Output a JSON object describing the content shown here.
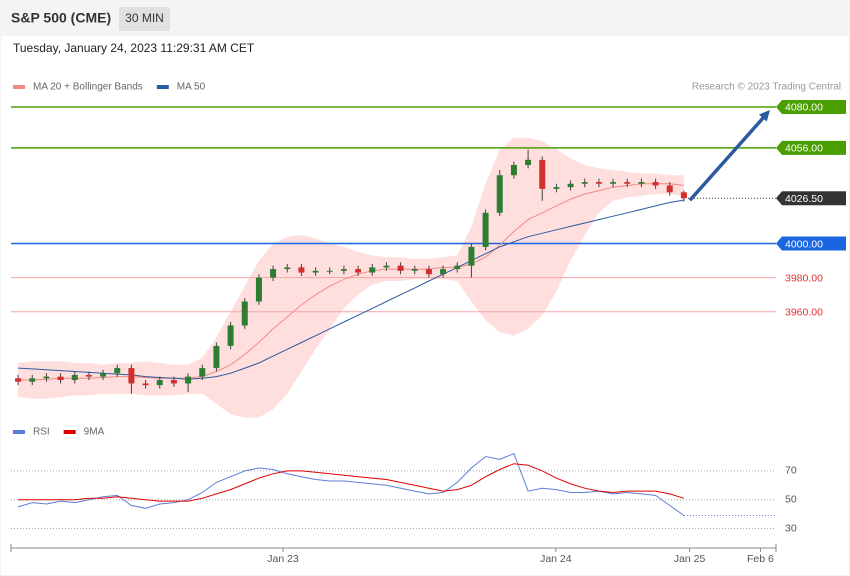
{
  "chart_data": [
    {
      "type": "candlestick",
      "title": "S&P 500 (CME)",
      "timeframe": "30 MIN",
      "subtitle": "Tuesday, January 24, 2023 11:29:31 AM CET",
      "attribution": "Research © 2023 Trading Central",
      "up_color": "#2e7d32",
      "down_color": "#d32f2f",
      "ylim": [
        3896,
        4087
      ],
      "open": [
        3921,
        3919,
        3921,
        3922,
        3920,
        3923,
        3922,
        3924,
        3927,
        3918,
        3917,
        3920,
        3918,
        3922,
        3927,
        3940,
        3952,
        3966,
        3980,
        3985,
        3986,
        3983,
        3984,
        3984,
        3985,
        3983,
        3986,
        3987,
        3984,
        3985,
        3982,
        3985,
        3987,
        3998,
        4018,
        4040,
        4046,
        4049,
        4032,
        4033,
        4035,
        4036,
        4035,
        4036,
        4035,
        4036,
        4034,
        4030
      ],
      "high": [
        3923,
        3923,
        3924,
        3924,
        3925,
        3925,
        3926,
        3929,
        3929,
        3920,
        3922,
        3922,
        3924,
        3929,
        3942,
        3954,
        3968,
        3982,
        3987,
        3988,
        3988,
        3986,
        3986,
        3987,
        3987,
        3988,
        3989,
        3989,
        3987,
        3987,
        3987,
        3989,
        4000,
        4020,
        4043,
        4048,
        4055,
        4051,
        4035,
        4037,
        4038,
        4038,
        4038,
        4038,
        4038,
        4038,
        4036,
        4031
      ],
      "low": [
        3917,
        3917,
        3919,
        3918,
        3918,
        3920,
        3920,
        3922,
        3912,
        3915,
        3915,
        3916,
        3913,
        3920,
        3925,
        3938,
        3950,
        3964,
        3978,
        3983,
        3981,
        3981,
        3982,
        3982,
        3981,
        3981,
        3984,
        3982,
        3982,
        3980,
        3980,
        3983,
        3980,
        3996,
        4016,
        4038,
        4044,
        4025,
        4030,
        4031,
        4033,
        4033,
        4033,
        4033,
        4033,
        4032,
        4028,
        4024.5
      ],
      "close": [
        3919,
        3921,
        3922,
        3920,
        3923,
        3922,
        3924,
        3927,
        3918,
        3917,
        3920,
        3918,
        3922,
        3927,
        3940,
        3952,
        3966,
        3980,
        3985,
        3986,
        3983,
        3984,
        3984,
        3985,
        3983,
        3986,
        3987,
        3984,
        3985,
        3982,
        3985,
        3987,
        3998,
        4018,
        4040,
        4046,
        4049,
        4032,
        4033,
        4035,
        4036,
        4035,
        4036,
        4035,
        4036,
        4034,
        4030,
        4026.5
      ],
      "overlays": [
        {
          "name": "MA 20 + Bollinger Bands",
          "color": "#f28b82",
          "band_color": "#ffdede",
          "values": [
            3920,
            3920,
            3920.5,
            3921,
            3921,
            3921,
            3921.5,
            3922,
            3922,
            3921.5,
            3921,
            3921,
            3921,
            3922,
            3925,
            3929,
            3935,
            3942,
            3950,
            3957,
            3964,
            3970,
            3975,
            3979,
            3982,
            3984,
            3985,
            3985,
            3985,
            3985,
            3986,
            3986,
            3988,
            3992,
            3999,
            4007,
            4014,
            4018,
            4022,
            4026,
            4029,
            4031,
            4033,
            4034,
            4035,
            4035,
            4035,
            4034
          ],
          "upper": [
            3930,
            3931,
            3931,
            3931,
            3930,
            3930,
            3929,
            3930,
            3930,
            3931,
            3930,
            3929,
            3929,
            3933,
            3945,
            3960,
            3975,
            3990,
            4000,
            4004,
            4005,
            4003,
            4000,
            3998,
            3995,
            3993,
            3992,
            3992,
            3991,
            3991,
            3992,
            3993,
            4010,
            4035,
            4055,
            4062,
            4062,
            4060,
            4055,
            4050,
            4046,
            4044,
            4043,
            4042,
            4041,
            4041,
            4040,
            4040
          ],
          "lower": [
            3910,
            3909,
            3909,
            3910,
            3911,
            3911,
            3912,
            3912,
            3912,
            3911,
            3911,
            3911,
            3912,
            3912,
            3906,
            3900,
            3898,
            3898,
            3903,
            3912,
            3925,
            3938,
            3950,
            3962,
            3970,
            3976,
            3978,
            3978,
            3979,
            3979,
            3979,
            3978,
            3966,
            3955,
            3948,
            3946,
            3950,
            3958,
            3972,
            3990,
            4005,
            4018,
            4025,
            4027,
            4028,
            4029,
            4029,
            4028
          ]
        },
        {
          "name": "MA 50",
          "color": "#2c5aa0",
          "values": [
            3927,
            3926.5,
            3926,
            3925.5,
            3925,
            3924.5,
            3924,
            3923.5,
            3923,
            3922,
            3921.5,
            3921,
            3920.5,
            3921,
            3922,
            3924,
            3927,
            3930,
            3934,
            3938,
            3942,
            3946,
            3950,
            3954,
            3958,
            3962,
            3966,
            3970,
            3974,
            3978,
            3982,
            3986,
            3990,
            3994,
            3998,
            4001,
            4004,
            4006,
            4008,
            4010,
            4012,
            4014,
            4016,
            4018,
            4020,
            4022,
            4024,
            4025.5
          ]
        }
      ],
      "levels": [
        {
          "value": 4080,
          "label": "4080.00",
          "color": "#4a9e00",
          "box": true
        },
        {
          "value": 4056,
          "label": "4056.00",
          "color": "#4a9e00",
          "box": true
        },
        {
          "value": 4026.5,
          "label": "4026.50",
          "color": "#333333",
          "box": true,
          "dotted": true
        },
        {
          "value": 4000,
          "label": "4000.00",
          "color": "#1a66e0",
          "box": true
        },
        {
          "value": 3980,
          "label": "3980.00",
          "color": "#e03030",
          "box": false
        },
        {
          "value": 3960,
          "label": "3960.00",
          "color": "#e03030",
          "box": false
        }
      ]
    },
    {
      "type": "line",
      "ylim": [
        22,
        88
      ],
      "yticks": [
        30,
        50,
        70
      ],
      "grid": true,
      "xlim": [
        -0.5,
        53.5
      ],
      "xticks": [
        {
          "value": 18.7,
          "label": "Jan 23"
        },
        {
          "value": 37.96,
          "label": "Jan 24"
        },
        {
          "value": 47.4,
          "label": "Jan 25"
        },
        {
          "value": 52.4,
          "label": "Feb 6"
        }
      ],
      "series": [
        {
          "name": "RSI",
          "color": "#5b7fd6",
          "values": [
            45,
            48,
            47,
            49,
            48,
            50,
            52,
            53,
            46,
            44,
            47,
            48,
            50,
            55,
            62,
            66,
            70,
            72,
            71,
            68,
            66,
            64,
            63,
            63,
            62,
            61,
            60,
            58,
            56,
            54,
            55,
            62,
            72,
            80,
            78,
            82,
            56,
            58,
            57,
            55,
            55,
            56,
            54,
            55,
            54,
            53,
            46,
            39
          ]
        },
        {
          "name": "9MA",
          "color": "#e00000",
          "values": [
            50,
            50,
            50,
            50,
            50,
            51,
            51,
            52,
            51,
            50,
            49,
            49,
            49,
            51,
            54,
            57,
            61,
            65,
            68,
            70,
            70,
            69,
            68,
            67,
            66,
            65,
            64,
            62,
            60,
            58,
            56,
            57,
            60,
            66,
            71,
            75,
            74,
            70,
            65,
            61,
            58,
            56,
            55,
            56,
            56,
            56,
            54,
            51
          ]
        }
      ]
    }
  ]
}
